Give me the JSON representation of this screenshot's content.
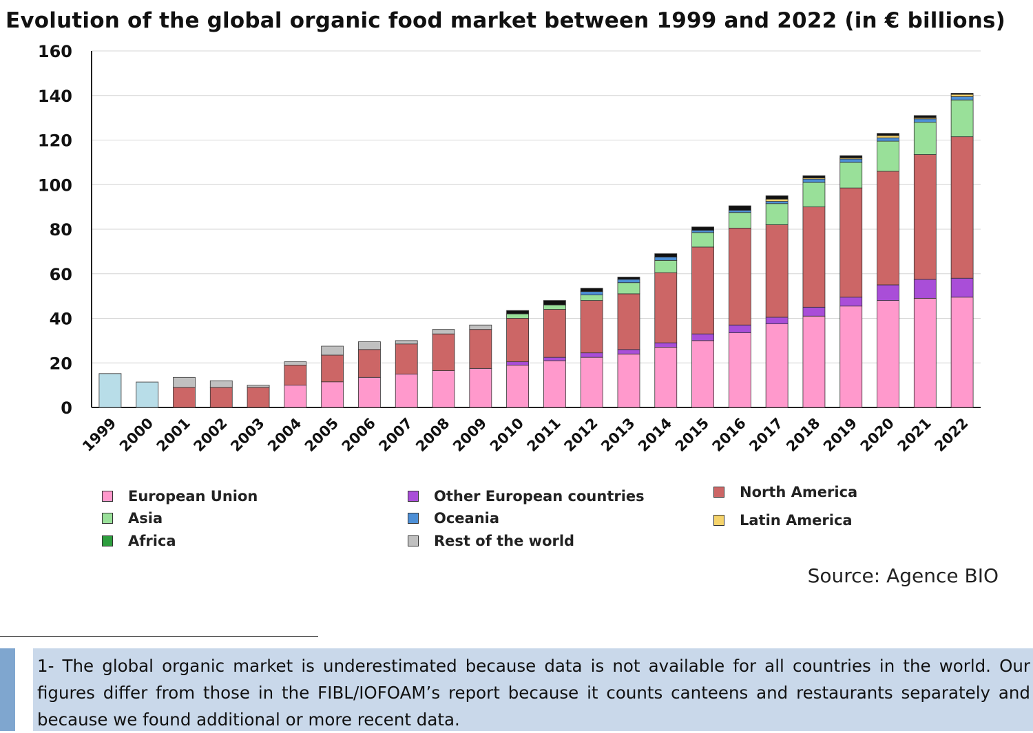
{
  "chart_data": {
    "type": "bar",
    "stacked": true,
    "title": "Evolution of the global organic food market between 1999 and 2022 (in € billions)",
    "xlabel": "",
    "ylabel": "",
    "ylim": [
      0,
      160
    ],
    "yticks": [
      0,
      20,
      40,
      60,
      80,
      100,
      120,
      140,
      160
    ],
    "grid": true,
    "legend_position": "bottom",
    "categories": [
      "1999",
      "2000",
      "2001",
      "2002",
      "2003",
      "2004",
      "2005",
      "2006",
      "2007",
      "2008",
      "2009",
      "2010",
      "2011",
      "2012",
      "2013",
      "2014",
      "2015",
      "2016",
      "2017",
      "2018",
      "2019",
      "2020",
      "2021",
      "2022"
    ],
    "total_only": {
      "categories": [
        "1999",
        "2000"
      ],
      "values": [
        15.2,
        11.4
      ],
      "color": "#b8dde8"
    },
    "series": [
      {
        "name": "European Union",
        "color": "#ff99cc",
        "values": [
          0,
          0,
          0,
          0,
          0,
          10,
          11.5,
          13.5,
          15,
          16.5,
          17.5,
          19,
          21,
          22.5,
          24,
          27,
          30,
          33.5,
          37.5,
          41,
          45.5,
          48,
          49,
          49.5
        ]
      },
      {
        "name": "Other European countries",
        "color": "#a94ed8",
        "values": [
          0,
          0,
          0,
          0,
          0,
          0,
          0,
          0,
          0,
          0,
          0,
          1.5,
          1.5,
          2,
          2,
          2,
          3,
          3.5,
          3,
          4,
          4,
          7,
          8.5,
          8.5
        ]
      },
      {
        "name": "North America",
        "color": "#cc6666",
        "values": [
          0,
          0,
          9,
          9,
          9,
          9,
          12,
          12.5,
          13.5,
          16.5,
          17.5,
          19.5,
          21.5,
          23.5,
          25,
          31.5,
          39,
          43.5,
          41.5,
          45,
          49,
          51,
          56,
          63.5
        ]
      },
      {
        "name": "Asia",
        "color": "#99e099",
        "values": [
          0,
          0,
          0,
          0,
          0,
          0,
          0,
          0,
          0,
          0,
          0,
          2,
          2,
          2.5,
          5,
          5.5,
          6.5,
          7,
          9.5,
          11,
          11.5,
          13.5,
          14.5,
          16.5
        ]
      },
      {
        "name": "Oceania",
        "color": "#4d8fd6",
        "values": [
          0,
          0,
          0,
          0,
          0,
          0,
          0,
          0,
          0,
          0,
          0,
          0,
          0,
          1.5,
          1.5,
          1.5,
          1,
          1,
          1,
          1.5,
          1.5,
          1.5,
          1.5,
          1.5
        ]
      },
      {
        "name": "Latin America",
        "color": "#f5d36b",
        "values": [
          0,
          0,
          0,
          0,
          0,
          0,
          0,
          0,
          0,
          0,
          0,
          0,
          0,
          0,
          0,
          0,
          0,
          0,
          1,
          0.5,
          0.5,
          1,
          0.5,
          1
        ]
      },
      {
        "name": "Africa",
        "color": "#2e9e3e",
        "values": [
          0,
          0,
          0,
          0,
          0,
          0,
          0,
          0,
          0,
          0,
          0,
          0,
          0,
          0,
          0,
          0,
          0,
          0,
          0,
          0,
          0,
          0,
          0,
          0
        ]
      },
      {
        "name": "Rest of the world",
        "color": "#c0c0c0",
        "values": [
          0,
          0,
          4.5,
          3,
          1,
          1.5,
          4,
          3.5,
          1.5,
          2,
          2,
          0,
          0,
          0,
          0,
          0,
          0,
          0,
          0,
          0,
          0,
          0,
          0,
          0
        ]
      },
      {
        "name": "",
        "color": "#111111",
        "values": [
          0,
          0,
          0,
          0,
          0,
          0,
          0,
          0,
          0,
          0,
          0,
          1.5,
          2,
          1.5,
          1,
          1.5,
          1.5,
          2,
          1.5,
          1,
          1,
          1,
          1,
          0.5
        ]
      }
    ]
  },
  "legend": {
    "items": [
      {
        "name": "European Union",
        "color": "#ff99cc"
      },
      {
        "name": "Other European countries",
        "color": "#a94ed8"
      },
      {
        "name": "North America",
        "color": "#cc6666"
      },
      {
        "name": "Asia",
        "color": "#99e099"
      },
      {
        "name": "Oceania",
        "color": "#4d8fd6"
      },
      {
        "name": "Latin America",
        "color": "#f5d36b"
      },
      {
        "name": "Africa",
        "color": "#2e9e3e"
      },
      {
        "name": "Rest of the world",
        "color": "#c0c0c0"
      }
    ]
  },
  "source": "Source: Agence BIO",
  "footnote": "1- The global organic market is underestimated because data is not available for all countries in the world. Our figures differ from those in the FIBL/IOFOAM’s report because it counts canteens and restaurants separately and because we found additional or more recent data."
}
